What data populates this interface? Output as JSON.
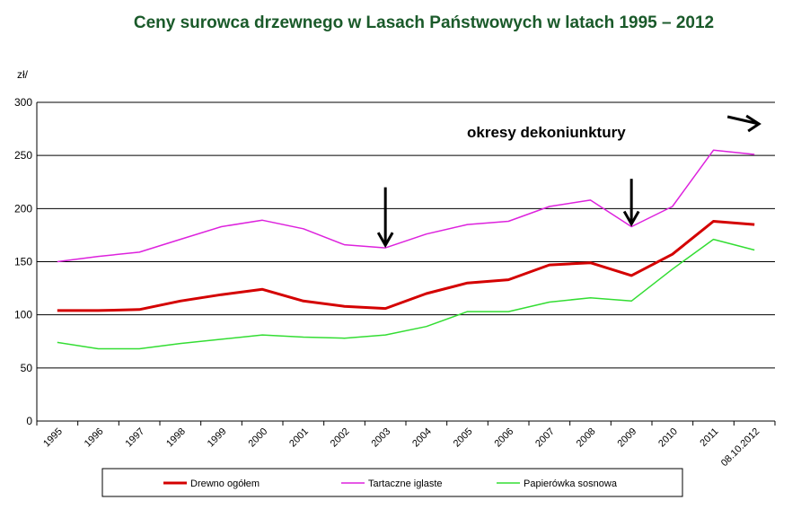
{
  "chart_data": {
    "type": "line",
    "title": "Ceny surowca drzewnego w Lasach Państwowych w latach 1995 – 2012",
    "ylabel": "zł/",
    "xlabel": "",
    "categories": [
      "1995",
      "1996",
      "1997",
      "1998",
      "1999",
      "2000",
      "2001",
      "2002",
      "2003",
      "2004",
      "2005",
      "2006",
      "2007",
      "2008",
      "2009",
      "2010",
      "2011",
      "08.10.2012"
    ],
    "ylim": [
      0,
      300
    ],
    "yticks": [
      0,
      50,
      100,
      150,
      200,
      250,
      300
    ],
    "grid": true,
    "legend_position": "bottom",
    "series": [
      {
        "name": "Drewno ogółem",
        "color": "#d40000",
        "values": [
          104,
          104,
          105,
          113,
          119,
          124,
          113,
          108,
          106,
          120,
          130,
          133,
          147,
          149,
          137,
          157,
          188,
          185
        ]
      },
      {
        "name": "Tartaczne iglaste",
        "color": "#dd22dd",
        "values": [
          150,
          155,
          159,
          171,
          183,
          189,
          181,
          166,
          163,
          176,
          185,
          188,
          202,
          208,
          183,
          202,
          255,
          251
        ]
      },
      {
        "name": "Papierówka sosnowa",
        "color": "#33dd33",
        "values": [
          74,
          68,
          68,
          73,
          77,
          81,
          79,
          78,
          81,
          89,
          103,
          103,
          112,
          116,
          113,
          143,
          171,
          161
        ]
      }
    ],
    "annotation": "okresy dekoniunktury",
    "arrows": [
      {
        "category": "2003",
        "direction": "down"
      },
      {
        "category": "2009",
        "direction": "down"
      },
      {
        "category": "08.10.2012",
        "direction": "right"
      }
    ]
  },
  "colors": {
    "title": "#1a5a2a",
    "grid": "#000000",
    "axis": "#000000",
    "legend_border": "#000000"
  }
}
